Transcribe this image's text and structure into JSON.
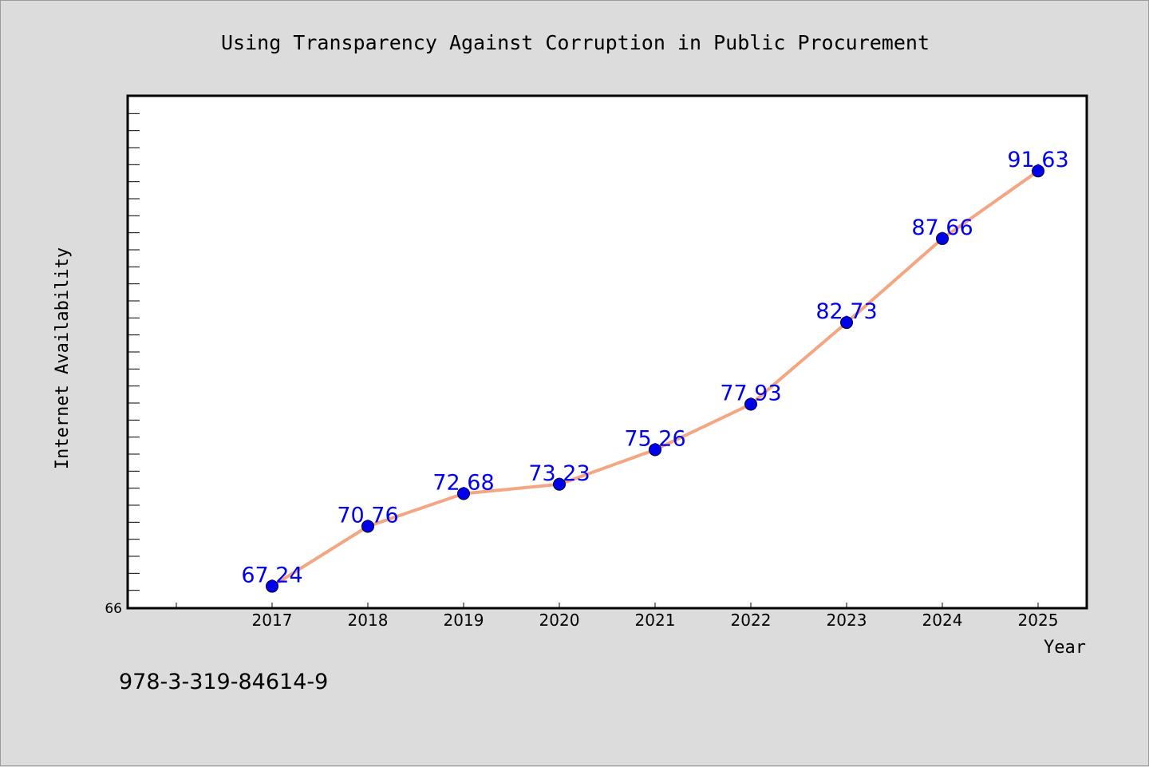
{
  "chart_data": {
    "type": "line",
    "title": "Using Transparency Against Corruption in Public Procurement",
    "xlabel": "Year",
    "ylabel": "Internet Availability",
    "categories": [
      "2017",
      "2018",
      "2019",
      "2020",
      "2021",
      "2022",
      "2023",
      "2024",
      "2025"
    ],
    "series": [
      {
        "values": [
          67.24,
          70.76,
          72.68,
          73.23,
          75.26,
          77.93,
          82.73,
          87.66,
          91.63
        ],
        "data_labels": [
          "67.24",
          "70.76",
          "72.68",
          "73.23",
          "75.26",
          "77.93",
          "82.73",
          "87.66",
          "91.63"
        ],
        "line_color": "#f4a582",
        "marker_color": "#0000ee",
        "label_color": "#0000ee"
      }
    ],
    "y_tick_labels": [
      "66"
    ],
    "ylim": [
      66,
      96
    ],
    "x_first_tick_year": 2016,
    "grid": false,
    "legend": "none"
  },
  "footer": {
    "isbn": "978-3-319-84614-9"
  },
  "colors": {
    "background": "#dcdcdc",
    "plot_background": "#ffffff",
    "axis": "#000000"
  }
}
